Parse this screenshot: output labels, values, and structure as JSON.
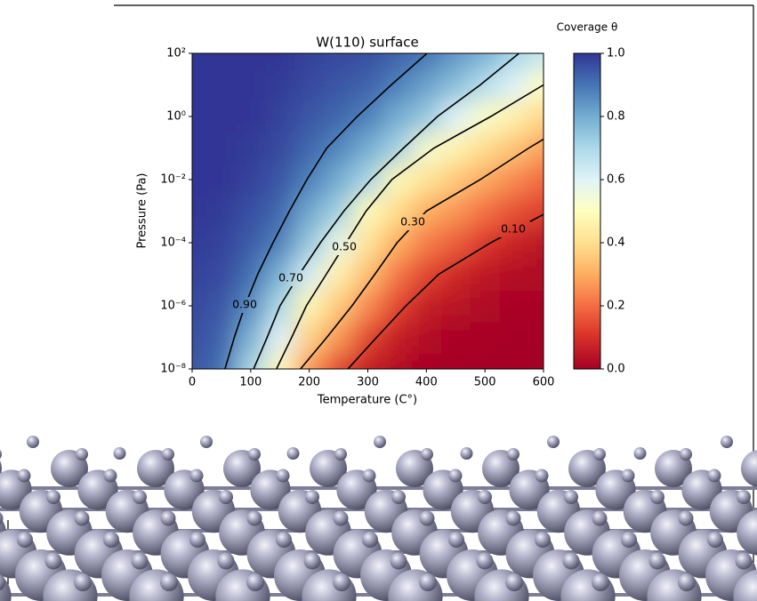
{
  "chart_data": {
    "type": "heatmap",
    "title": "W(110) surface",
    "x_label": "Temperature (C°)",
    "y_label": "Pressure (Pa)",
    "x": [
      0,
      50,
      100,
      150,
      200,
      250,
      300,
      350,
      400,
      450,
      500,
      550,
      600
    ],
    "y": [
      1e-08,
      1e-07,
      1e-06,
      1e-05,
      0.0001,
      0.001,
      0.01,
      0.1,
      1,
      10,
      100
    ],
    "z": [
      [
        0.95,
        0.91,
        0.71,
        0.48,
        0.26,
        0.13,
        0.06,
        0.03,
        0.01,
        0,
        0,
        0,
        0
      ],
      [
        0.96,
        0.93,
        0.79,
        0.6,
        0.37,
        0.26,
        0.13,
        0.06,
        0.03,
        0.01,
        0.01,
        0,
        0
      ],
      [
        0.97,
        0.95,
        0.86,
        0.7,
        0.47,
        0.35,
        0.24,
        0.13,
        0.06,
        0.04,
        0.02,
        0.01,
        0.01
      ],
      [
        0.98,
        0.97,
        0.91,
        0.79,
        0.62,
        0.45,
        0.33,
        0.21,
        0.13,
        0.08,
        0.05,
        0.03,
        0.02
      ],
      [
        0.99,
        0.98,
        0.94,
        0.88,
        0.74,
        0.57,
        0.41,
        0.3,
        0.22,
        0.17,
        0.11,
        0.07,
        0.04
      ],
      [
        1,
        0.99,
        0.96,
        0.92,
        0.81,
        0.72,
        0.49,
        0.39,
        0.3,
        0.26,
        0.2,
        0.15,
        0.12
      ],
      [
        1,
        1,
        0.98,
        0.95,
        0.88,
        0.8,
        0.71,
        0.48,
        0.41,
        0.35,
        0.29,
        0.24,
        0.19
      ],
      [
        1,
        1,
        0.99,
        0.97,
        0.92,
        0.87,
        0.8,
        0.72,
        0.53,
        0.46,
        0.39,
        0.34,
        0.28
      ],
      [
        1,
        1,
        1,
        0.98,
        0.95,
        0.92,
        0.88,
        0.8,
        0.74,
        0.6,
        0.52,
        0.45,
        0.38
      ],
      [
        1,
        1,
        1,
        0.99,
        0.97,
        0.95,
        0.93,
        0.88,
        0.82,
        0.76,
        0.68,
        0.6,
        0.5
      ],
      [
        1,
        1,
        1,
        1,
        0.98,
        0.97,
        0.96,
        0.93,
        0.9,
        0.84,
        0.79,
        0.71,
        0.65
      ]
    ],
    "xlim": [
      0,
      600
    ],
    "ylim": [
      1e-08,
      100
    ],
    "yscale": "log",
    "xticks": [
      0,
      100,
      200,
      300,
      400,
      500,
      600
    ],
    "yticks": [
      {
        "value": 1e-08,
        "label": "10⁻⁸"
      },
      {
        "value": 1e-06,
        "label": "10⁻⁶"
      },
      {
        "value": 0.0001,
        "label": "10⁻⁴"
      },
      {
        "value": 0.01,
        "label": "10⁻²"
      },
      {
        "value": 1,
        "label": "10⁰"
      },
      {
        "value": 100,
        "label": "10²"
      }
    ],
    "colormap": [
      "#a50026",
      "#d73027",
      "#f46d43",
      "#fdae61",
      "#fee090",
      "#ffffbf",
      "#e0f3f8",
      "#abd9e9",
      "#74add1",
      "#4575b4",
      "#313695"
    ],
    "colorbar": {
      "label": "Coverage θ",
      "lim": [
        0,
        1
      ],
      "ticks": [
        {
          "value": 0,
          "label": "0.0"
        },
        0.2,
        0.4,
        0.6,
        0.8,
        {
          "value": 1,
          "label": "1.0"
        }
      ]
    },
    "contour_color": "#000000",
    "contours": [
      {
        "label": "0.90",
        "x": [
          56,
          72,
          90,
          112,
          138,
          166,
          196,
          230,
          282,
          340,
          401
        ],
        "y": [
          1e-08,
          1e-07,
          1e-06,
          1e-05,
          0.0001,
          0.001,
          0.01,
          0.1,
          1,
          10,
          100
        ]
      },
      {
        "label": "0.70",
        "x": [
          105,
          128,
          150,
          183,
          219,
          259,
          305,
          361,
          419,
          492,
          558
        ],
        "y": [
          1e-08,
          1e-07,
          1e-06,
          1e-05,
          0.0001,
          0.001,
          0.01,
          0.1,
          1,
          10,
          100
        ]
      },
      {
        "label": "0.50",
        "x": [
          144,
          170,
          195,
          229,
          263,
          297,
          341,
          413,
          510,
          600
        ],
        "y": [
          1e-08,
          1e-07,
          1e-06,
          1e-05,
          0.0001,
          0.001,
          0.01,
          0.1,
          1,
          10
        ]
      },
      {
        "label": "0.30",
        "x": [
          185,
          230,
          273,
          312,
          350,
          400,
          492,
          575,
          600
        ],
        "y": [
          1e-08,
          1e-07,
          1e-06,
          1e-05,
          0.0001,
          0.001,
          0.01,
          0.1,
          0.19
        ]
      },
      {
        "label": "0.10",
        "x": [
          266,
          315,
          365,
          421,
          510,
          600
        ],
        "y": [
          1e-08,
          1e-07,
          1e-06,
          1e-05,
          0.0001,
          0.00079
        ]
      }
    ]
  }
}
